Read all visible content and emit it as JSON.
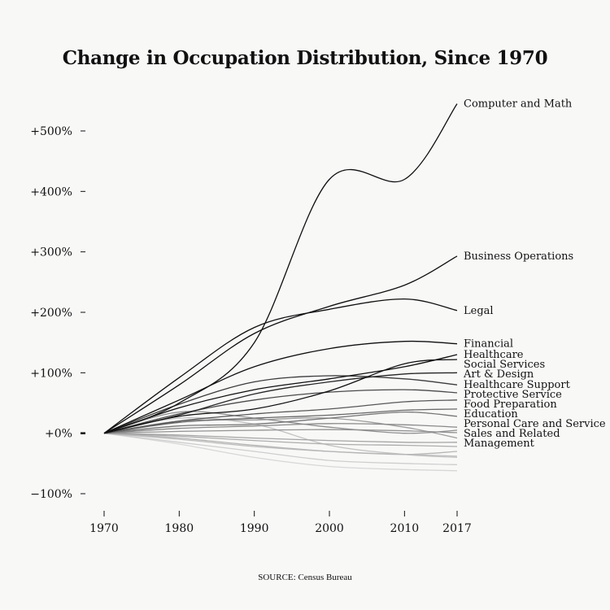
{
  "chart_data": {
    "type": "line",
    "title": "Change in Occupation Distribution, Since 1970",
    "source": "SOURCE: Census Bureau",
    "xlabel": "",
    "ylabel": "",
    "x": [
      1970,
      1980,
      1990,
      2000,
      2010,
      2017
    ],
    "x_ticks": [
      "1970",
      "1980",
      "1990",
      "2000",
      "2010",
      "2017"
    ],
    "ylim": [
      -100,
      500
    ],
    "y_ticks": [
      {
        "value": 500,
        "label": "+500%"
      },
      {
        "value": 400,
        "label": "+400%"
      },
      {
        "value": 300,
        "label": "+300%"
      },
      {
        "value": 200,
        "label": "+200%"
      },
      {
        "value": 100,
        "label": "+100%"
      },
      {
        "value": 0,
        "label": "+0%"
      },
      {
        "value": -100,
        "label": "−100%"
      }
    ],
    "series": [
      {
        "name": "Computer and Math",
        "values": [
          0,
          50,
          150,
          420,
          420,
          545
        ]
      },
      {
        "name": "Business Operations",
        "values": [
          0,
          80,
          165,
          210,
          245,
          293
        ]
      },
      {
        "name": "Legal",
        "values": [
          0,
          92,
          175,
          205,
          222,
          203
        ]
      },
      {
        "name": "Financial",
        "values": [
          0,
          55,
          110,
          140,
          152,
          148
        ]
      },
      {
        "name": "Healthcare",
        "values": [
          0,
          42,
          72,
          90,
          110,
          130
        ]
      },
      {
        "name": "Social Services",
        "values": [
          0,
          28,
          40,
          70,
          115,
          122
        ]
      },
      {
        "name": "Art & Design",
        "values": [
          0,
          30,
          65,
          85,
          98,
          100
        ]
      },
      {
        "name": "Healthcare Support",
        "values": [
          0,
          48,
          85,
          95,
          90,
          80
        ]
      },
      {
        "name": "Protective Service",
        "values": [
          0,
          32,
          55,
          68,
          72,
          67
        ]
      },
      {
        "name": "Food Preparation",
        "values": [
          0,
          20,
          32,
          40,
          52,
          55
        ]
      },
      {
        "name": "Education",
        "values": [
          0,
          18,
          25,
          30,
          38,
          40
        ]
      },
      {
        "name": "Personal Care and Service",
        "values": [
          0,
          12,
          15,
          25,
          35,
          28
        ]
      },
      {
        "name": "Sales and Related",
        "values": [
          0,
          8,
          12,
          16,
          14,
          10
        ]
      },
      {
        "name": "Management",
        "values": [
          0,
          3,
          5,
          6,
          4,
          1
        ]
      },
      {
        "name": "",
        "values": [
          0,
          35,
          25,
          10,
          0,
          5
        ]
      },
      {
        "name": "",
        "values": [
          0,
          -5,
          -12,
          -18,
          -20,
          -22
        ]
      },
      {
        "name": "",
        "values": [
          0,
          -10,
          -22,
          -30,
          -35,
          -38
        ]
      },
      {
        "name": "",
        "values": [
          0,
          -15,
          -30,
          -45,
          -50,
          -52
        ]
      },
      {
        "name": "",
        "values": [
          0,
          -8,
          -20,
          -30,
          -35,
          -30
        ]
      },
      {
        "name": "",
        "values": [
          0,
          -18,
          -40,
          -55,
          -60,
          -62
        ]
      },
      {
        "name": "",
        "values": [
          0,
          20,
          22,
          25,
          10,
          -8
        ]
      },
      {
        "name": "",
        "values": [
          0,
          -3,
          -8,
          -12,
          -15,
          -15
        ]
      },
      {
        "name": "",
        "values": [
          0,
          25,
          15,
          -20,
          -35,
          -40
        ]
      }
    ],
    "colors": {
      "background": "#f8f8f7",
      "dark_line": "#111111",
      "light_line": "#d2d2d2"
    },
    "grid": false,
    "legend": "labels at line ends (right)"
  }
}
